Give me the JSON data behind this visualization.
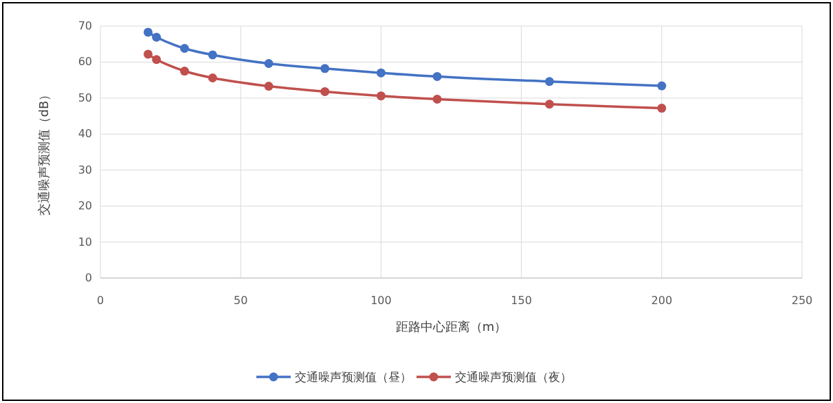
{
  "chart_data": {
    "type": "line",
    "xlabel": "距路中心距离（m）",
    "ylabel": "交通噪声预测值（dB）",
    "x": [
      17,
      20,
      30,
      40,
      60,
      80,
      100,
      120,
      160,
      200
    ],
    "series": [
      {
        "name": "交通噪声预测值（昼）",
        "color": "#4472c4",
        "values": [
          68.3,
          66.9,
          63.8,
          62.0,
          59.6,
          58.2,
          57.0,
          56.0,
          54.6,
          53.4
        ]
      },
      {
        "name": "交通噪声预测值（夜）",
        "color": "#c0504d",
        "values": [
          62.2,
          60.7,
          57.5,
          55.6,
          53.3,
          51.8,
          50.6,
          49.7,
          48.3,
          47.2
        ]
      }
    ],
    "xlim": [
      0,
      250
    ],
    "xticks": [
      0,
      50,
      100,
      150,
      200,
      250
    ],
    "ylim": [
      0,
      70
    ],
    "yticks": [
      0,
      10,
      20,
      30,
      40,
      50,
      60,
      70
    ],
    "grid": true,
    "legend": "bottom",
    "marker": "circle",
    "line_style": "solid"
  }
}
